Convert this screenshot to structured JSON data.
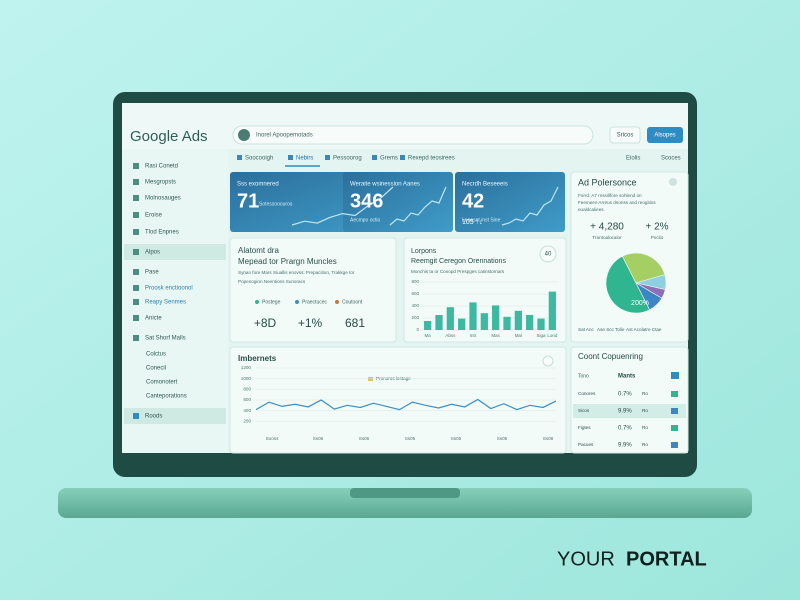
{
  "header": {
    "logo": "Google Ads",
    "search": "Inorel Apoopemotads",
    "button_1": "Sricos",
    "button_2": "Alsopes"
  },
  "tabs": [
    "Soocooigh",
    "Nebirs",
    "Pessoorog",
    "Grems",
    "Rexepd teosirees"
  ],
  "tab_actions": [
    "Eiolis",
    "Scoces"
  ],
  "sidebar": [
    "Rasi Conetd",
    "Mesgropsts",
    "Molnosauges",
    "Eroise",
    "Tlod Enpnes",
    "Alpos",
    "Pase",
    "Proosk enctioonol",
    "Reapy Senmes",
    "Anicte",
    "Sat Shorf Malls",
    "Colctus",
    "Conecil",
    "Comonotert",
    "Canteporations",
    "Roods"
  ],
  "kpis": [
    {
      "title": "Sss exomnered",
      "value": 71,
      "note": "Sotessooouros",
      "trend": [
        10,
        12,
        11,
        14,
        16,
        15,
        20,
        24,
        30
      ]
    },
    {
      "title": "Weraite wsinession Aanes",
      "value": 346,
      "note": "Aecmpo octio",
      "trend": [
        10,
        13,
        12,
        16,
        15,
        19,
        22,
        21,
        29
      ]
    },
    {
      "title": "Necrdh Beseeeis",
      "value": 42,
      "note": "Lneaset inst Sine",
      "extra": "105 ↑↓",
      "trend": [
        11,
        12,
        14,
        13,
        17,
        16,
        21,
        23,
        30
      ]
    }
  ],
  "overview": {
    "title": "Alatomt dra",
    "subtitle": "Mepead tor Prargn Muncles",
    "text": [
      "Synan fore Mars Siuallis enovss: Prepacition, Trakkge tor",
      "Popenogion Neentions Sunoracs"
    ],
    "legend": [
      "Postege",
      "Praectucec",
      "Coutoont"
    ],
    "values": [
      "+8D",
      "+1%",
      "681"
    ]
  },
  "bar_chart": {
    "title": "Lorpons",
    "subtitle": "Reemgit Ceregon Orennations",
    "badge": "40",
    "note": "Monchis ta or Conopd Prespges catinstornars",
    "categories": [
      "Ma",
      null,
      "Abss",
      null,
      "Intr",
      null,
      "Mas",
      null,
      "Mal",
      null,
      "Siga",
      "Lond"
    ],
    "values": [
      150,
      250,
      380,
      190,
      460,
      280,
      410,
      220,
      320,
      250,
      190,
      640
    ],
    "color": "#3cb9a0",
    "ylim": [
      0,
      800
    ],
    "yticks": [
      0,
      200,
      400,
      600,
      800
    ]
  },
  "line_chart": {
    "title": "Imbernets",
    "legend": "Pronoros lostage",
    "x_labels": [
      "Sooss",
      "Ss06",
      "Ss06",
      "Ss05",
      "Ss05",
      "Ss05",
      "Ss08"
    ],
    "values": [
      420,
      560,
      480,
      520,
      470,
      600,
      430,
      500,
      460,
      540,
      480,
      420,
      560,
      500,
      450,
      520,
      470,
      610,
      440,
      530,
      420,
      500,
      460,
      580
    ],
    "color": "#3a8fc4",
    "ylim": [
      0,
      1200
    ],
    "yticks": [
      200,
      400,
      600,
      800,
      1000,
      1200
    ]
  },
  "performance": {
    "title": "Ad Polersonce",
    "description": [
      "Forrd: A7 rnssillfore sohlend on",
      "Feemeen Arreus dnonss and reogitios",
      "eualdcaliees."
    ],
    "stats": [
      {
        "value": "+ 4,280",
        "label": "Trantoalocalor"
      },
      {
        "value": "+ 2%",
        "label": "Poclio"
      }
    ],
    "pie": {
      "values": [
        50,
        28,
        8,
        5,
        9
      ],
      "colors": [
        "#2fb58f",
        "#a5cf62",
        "#8fd0e0",
        "#8d6fb8",
        "#3d86c4"
      ],
      "label": "200%"
    },
    "legend": [
      "Sat Anc",
      "Ase Scc Tolie",
      "Ast Acolatre Ctae"
    ]
  },
  "table": {
    "title": "Coont Copuenring",
    "header": [
      "Tono",
      "Mants"
    ],
    "rows": [
      [
        "Conores",
        "0.7%",
        "Ro"
      ],
      [
        "Sicos",
        "9.9%",
        "Ro"
      ],
      [
        "Figtes",
        "0.7%",
        "Ro"
      ],
      [
        "Pacues",
        "9.9%",
        "Ro"
      ]
    ]
  },
  "brand": {
    "prefix": "YOUR",
    "suffix": "PORTAL"
  }
}
